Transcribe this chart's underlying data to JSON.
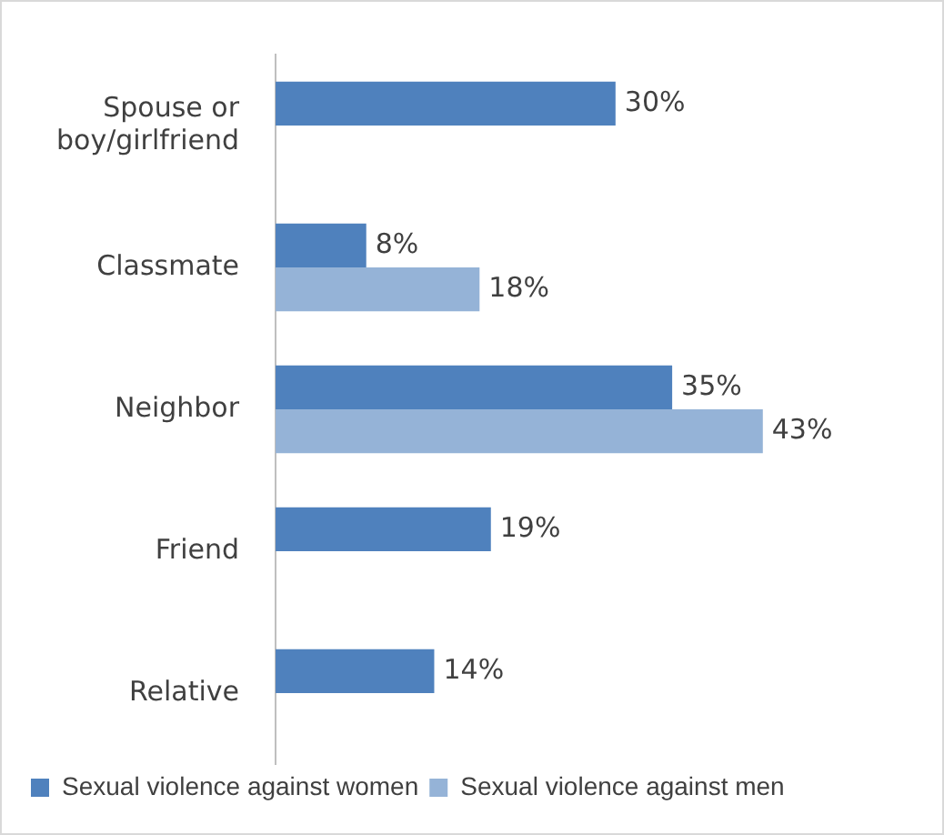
{
  "chart_data": {
    "type": "bar",
    "orientation": "horizontal",
    "categories": [
      "Spouse or boy/girlfriend",
      "Classmate",
      "Neighbor",
      "Friend",
      "Relative"
    ],
    "series": [
      {
        "name": "Sexual violence against women",
        "color": "#4f81bd",
        "values": [
          30,
          8,
          35,
          19,
          14
        ],
        "value_labels": [
          "30%",
          "8%",
          "35%",
          "19%",
          "14%"
        ]
      },
      {
        "name": "Sexual violence against men",
        "color": "#95b3d7",
        "values": [
          null,
          18,
          43,
          null,
          null
        ],
        "value_labels": [
          null,
          "18%",
          "43%",
          null,
          null
        ]
      }
    ],
    "tick_labels": "y",
    "grid": false,
    "legend": "bottom"
  }
}
